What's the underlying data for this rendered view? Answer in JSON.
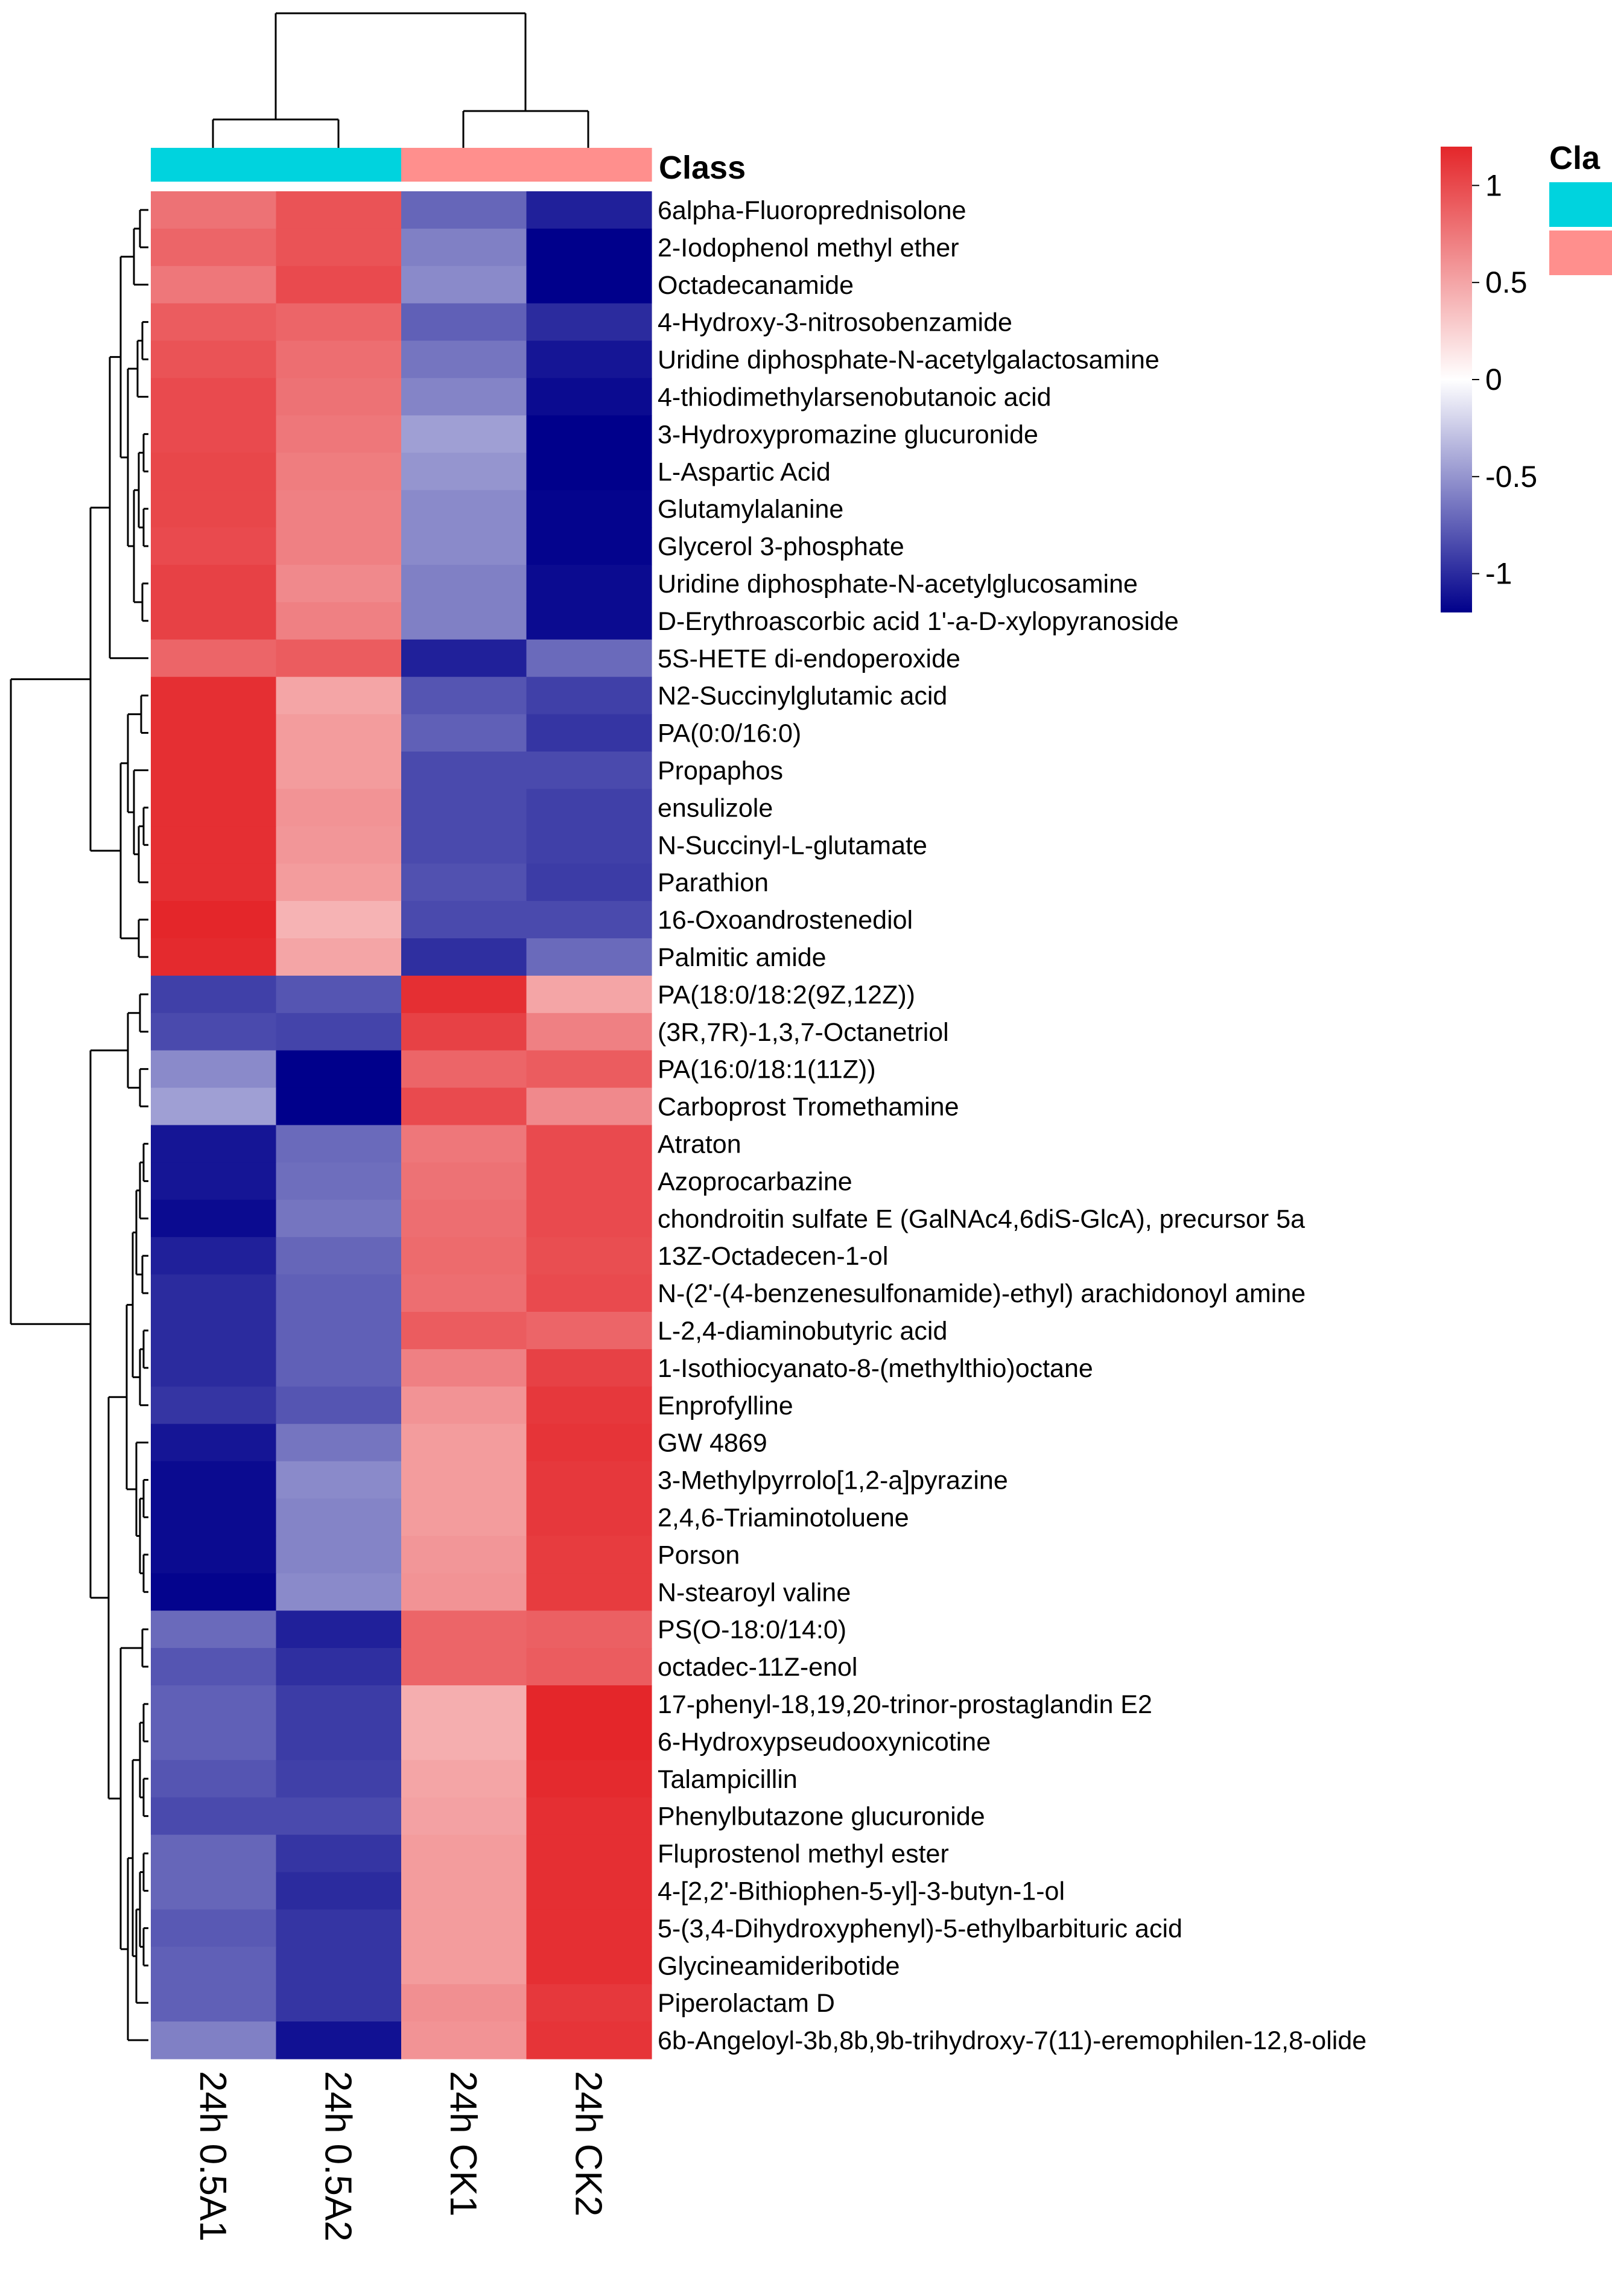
{
  "chart_data": {
    "type": "heatmap",
    "title": "",
    "columns": [
      "24h 0.5A1",
      "24h 0.5A2",
      "24h CK1",
      "24h CK2"
    ],
    "column_classes": [
      "0.5A",
      "0.5A",
      "CK",
      "CK"
    ],
    "annotation": {
      "title": "Class",
      "legend_title_visible": "Cla",
      "colors": {
        "0.5A": "#00d3de",
        "CK": "#ff8f8d"
      }
    },
    "color_scale": {
      "low": "#00008b",
      "mid": "#ffffff",
      "high": "#e4262a",
      "min": -1.2,
      "max": 1.2,
      "ticks": [
        1,
        0.5,
        0,
        -0.5,
        -1
      ],
      "tick_labels": [
        "1",
        "0.5",
        "0",
        "-0.5",
        "-1"
      ]
    },
    "rows": [
      {
        "name": "6alpha-Fluoroprednisolone",
        "values": [
          0.78,
          0.95,
          -0.72,
          -1.05
        ]
      },
      {
        "name": "2-Iodophenol methyl ether",
        "values": [
          0.85,
          0.95,
          -0.6,
          -1.2
        ]
      },
      {
        "name": "Octadecanamide",
        "values": [
          0.75,
          1.0,
          -0.55,
          -1.2
        ]
      },
      {
        "name": "4-Hydroxy-3-nitrosobenzamide",
        "values": [
          0.9,
          0.85,
          -0.75,
          -1.0
        ]
      },
      {
        "name": "Uridine diphosphate-N-acetylgalactosamine",
        "values": [
          0.95,
          0.8,
          -0.65,
          -1.1
        ]
      },
      {
        "name": "4-thiodimethylarsenobutanoic acid",
        "values": [
          1.0,
          0.78,
          -0.58,
          -1.15
        ]
      },
      {
        "name": "3-Hydroxypromazine glucuronide",
        "values": [
          1.0,
          0.75,
          -0.45,
          -1.2
        ]
      },
      {
        "name": "L-Aspartic Acid",
        "values": [
          1.02,
          0.72,
          -0.5,
          -1.2
        ]
      },
      {
        "name": "Glutamylalanine",
        "values": [
          1.02,
          0.7,
          -0.55,
          -1.18
        ]
      },
      {
        "name": "Glycerol 3-phosphate",
        "values": [
          1.0,
          0.7,
          -0.55,
          -1.18
        ]
      },
      {
        "name": "Uridine diphosphate-N-acetylglucosamine",
        "values": [
          1.05,
          0.65,
          -0.6,
          -1.15
        ]
      },
      {
        "name": "D-Erythroascorbic acid 1'-a-D-xylopyranoside",
        "values": [
          1.05,
          0.7,
          -0.6,
          -1.15
        ]
      },
      {
        "name": "5S-HETE di-endoperoxide",
        "values": [
          0.85,
          0.9,
          -1.05,
          -0.7
        ]
      },
      {
        "name": "N2-Succinylglutamic acid",
        "values": [
          1.15,
          0.5,
          -0.8,
          -0.9
        ]
      },
      {
        "name": "PA(0:0/16:0)",
        "values": [
          1.15,
          0.55,
          -0.75,
          -0.95
        ]
      },
      {
        "name": "Propaphos",
        "values": [
          1.15,
          0.55,
          -0.85,
          -0.85
        ]
      },
      {
        "name": "ensulizole",
        "values": [
          1.15,
          0.6,
          -0.85,
          -0.9
        ]
      },
      {
        "name": "N-Succinyl-L-glutamate",
        "values": [
          1.15,
          0.58,
          -0.85,
          -0.9
        ]
      },
      {
        "name": "Parathion",
        "values": [
          1.15,
          0.55,
          -0.82,
          -0.92
        ]
      },
      {
        "name": "16-Oxoandrostenediol",
        "values": [
          1.2,
          0.42,
          -0.85,
          -0.85
        ]
      },
      {
        "name": "Palmitic amide",
        "values": [
          1.18,
          0.5,
          -0.98,
          -0.7
        ]
      },
      {
        "name": "PA(18:0/18:2(9Z,12Z))",
        "values": [
          -0.9,
          -0.8,
          1.15,
          0.5
        ]
      },
      {
        "name": "(3R,7R)-1,3,7-Octanetriol",
        "values": [
          -0.85,
          -0.88,
          1.05,
          0.7
        ]
      },
      {
        "name": "PA(16:0/18:1(11Z))",
        "values": [
          -0.55,
          -1.2,
          0.85,
          0.9
        ]
      },
      {
        "name": "Carboprost Tromethamine",
        "values": [
          -0.45,
          -1.2,
          1.0,
          0.65
        ]
      },
      {
        "name": "Atraton",
        "values": [
          -1.1,
          -0.7,
          0.75,
          1.0
        ]
      },
      {
        "name": "Azoprocarbazine",
        "values": [
          -1.1,
          -0.68,
          0.78,
          1.0
        ]
      },
      {
        "name": "chondroitin sulfate E (GalNAc4,6diS-GlcA), precursor 5a",
        "values": [
          -1.15,
          -0.65,
          0.8,
          1.0
        ]
      },
      {
        "name": "13Z-Octadecen-1-ol",
        "values": [
          -1.05,
          -0.72,
          0.82,
          0.98
        ]
      },
      {
        "name": "N-(2'-(4-benzenesulfonamide)-ethyl) arachidonoyl amine",
        "values": [
          -1.0,
          -0.75,
          0.8,
          1.0
        ]
      },
      {
        "name": "L-2,4-diaminobutyric acid",
        "values": [
          -1.0,
          -0.75,
          0.9,
          0.85
        ]
      },
      {
        "name": "1-Isothiocyanato-8-(methylthio)octane",
        "values": [
          -1.0,
          -0.75,
          0.7,
          1.05
        ]
      },
      {
        "name": "Enprofylline",
        "values": [
          -0.95,
          -0.8,
          0.6,
          1.1
        ]
      },
      {
        "name": "GW 4869",
        "values": [
          -1.1,
          -0.65,
          0.55,
          1.12
        ]
      },
      {
        "name": "3-Methylpyrrolo[1,2-a]pyrazine",
        "values": [
          -1.15,
          -0.55,
          0.55,
          1.1
        ]
      },
      {
        "name": "2,4,6-Triaminotoluene",
        "values": [
          -1.15,
          -0.58,
          0.55,
          1.1
        ]
      },
      {
        "name": "Porson",
        "values": [
          -1.15,
          -0.58,
          0.58,
          1.08
        ]
      },
      {
        "name": "N-stearoyl valine",
        "values": [
          -1.18,
          -0.55,
          0.6,
          1.08
        ]
      },
      {
        "name": "PS(O-18:0/14:0)",
        "values": [
          -0.7,
          -1.05,
          0.85,
          0.88
        ]
      },
      {
        "name": "octadec-11Z-enol",
        "values": [
          -0.8,
          -0.98,
          0.85,
          0.9
        ]
      },
      {
        "name": "17-phenyl-18,19,20-trinor-prostaglandin E2",
        "values": [
          -0.75,
          -0.92,
          0.45,
          1.2
        ]
      },
      {
        "name": "6-Hydroxypseudooxynicotine",
        "values": [
          -0.75,
          -0.92,
          0.45,
          1.2
        ]
      },
      {
        "name": "Talampicillin",
        "values": [
          -0.8,
          -0.9,
          0.5,
          1.18
        ]
      },
      {
        "name": "Phenylbutazone glucuronide",
        "values": [
          -0.85,
          -0.85,
          0.52,
          1.15
        ]
      },
      {
        "name": "Fluprostenol methyl ester",
        "values": [
          -0.72,
          -0.95,
          0.55,
          1.15
        ]
      },
      {
        "name": "4-[2,2'-Bithiophen-5-yl]-3-butyn-1-ol",
        "values": [
          -0.72,
          -1.0,
          0.55,
          1.15
        ]
      },
      {
        "name": "5-(3,4-Dihydroxyphenyl)-5-ethylbarbituric acid",
        "values": [
          -0.78,
          -0.95,
          0.55,
          1.15
        ]
      },
      {
        "name": "Glycineamideribotide",
        "values": [
          -0.75,
          -0.95,
          0.55,
          1.15
        ]
      },
      {
        "name": "Piperolactam D",
        "values": [
          -0.75,
          -0.95,
          0.62,
          1.1
        ]
      },
      {
        "name": "6b-Angeloyl-3b,8b,9b-trihydroxy-7(11)-eremophilen-12,8-olide",
        "values": [
          -0.6,
          -1.12,
          0.6,
          1.12
        ]
      }
    ]
  }
}
